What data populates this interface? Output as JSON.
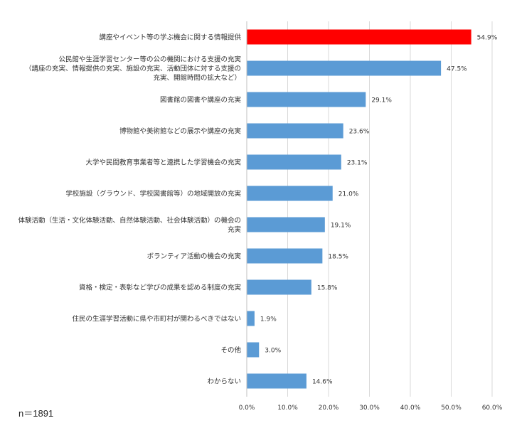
{
  "note": "n＝1891",
  "chart_data": {
    "type": "bar",
    "orientation": "horizontal",
    "title": "",
    "xlabel": "",
    "ylabel": "",
    "xlim": [
      0,
      60
    ],
    "tick_values": [
      0,
      10,
      20,
      30,
      40,
      50,
      60
    ],
    "tick_labels": [
      "0.0%",
      "10.0%",
      "20.0%",
      "30.0%",
      "40.0%",
      "50.0%",
      "60.0%"
    ],
    "grid": "vertical",
    "legend": "none",
    "colors": {
      "default": "#5B9BD5",
      "highlight": "#FF0000"
    },
    "categories": [
      [
        "講座やイベント等の学ぶ機会に関する情報提供"
      ],
      [
        "公民館や生涯学習センター等の公の機関における支援の充実",
        "（講座の充実、情報提供の充実、施設の充実、活動団体に対する支援の",
        "充実、開館時間の拡大など）"
      ],
      [
        "図書館の図書や講座の充実"
      ],
      [
        "博物館や美術館などの展示や講座の充実"
      ],
      [
        "大学や民間教育事業者等と連携した学習機会の充実"
      ],
      [
        "学校施設（グラウンド、学校図書館等）の地域開放の充実"
      ],
      [
        "体験活動（生活・文化体験活動、自然体験活動、社会体験活動）の機会の",
        "充実"
      ],
      [
        "ボランティア活動の機会の充実"
      ],
      [
        "資格・検定・表彰など学びの成果を認める制度の充実"
      ],
      [
        "住民の生涯学習活動に県や市町村が関わるべきではない"
      ],
      [
        "その他"
      ],
      [
        "わからない"
      ]
    ],
    "values": [
      54.9,
      47.5,
      29.1,
      23.6,
      23.1,
      21.0,
      19.1,
      18.5,
      15.8,
      1.9,
      3.0,
      14.6
    ],
    "value_labels": [
      "54.9%",
      "47.5%",
      "29.1%",
      "23.6%",
      "23.1%",
      "21.0%",
      "19.1%",
      "18.5%",
      "15.8%",
      "1.9%",
      "3.0%",
      "14.6%"
    ],
    "highlight_index": 0
  }
}
